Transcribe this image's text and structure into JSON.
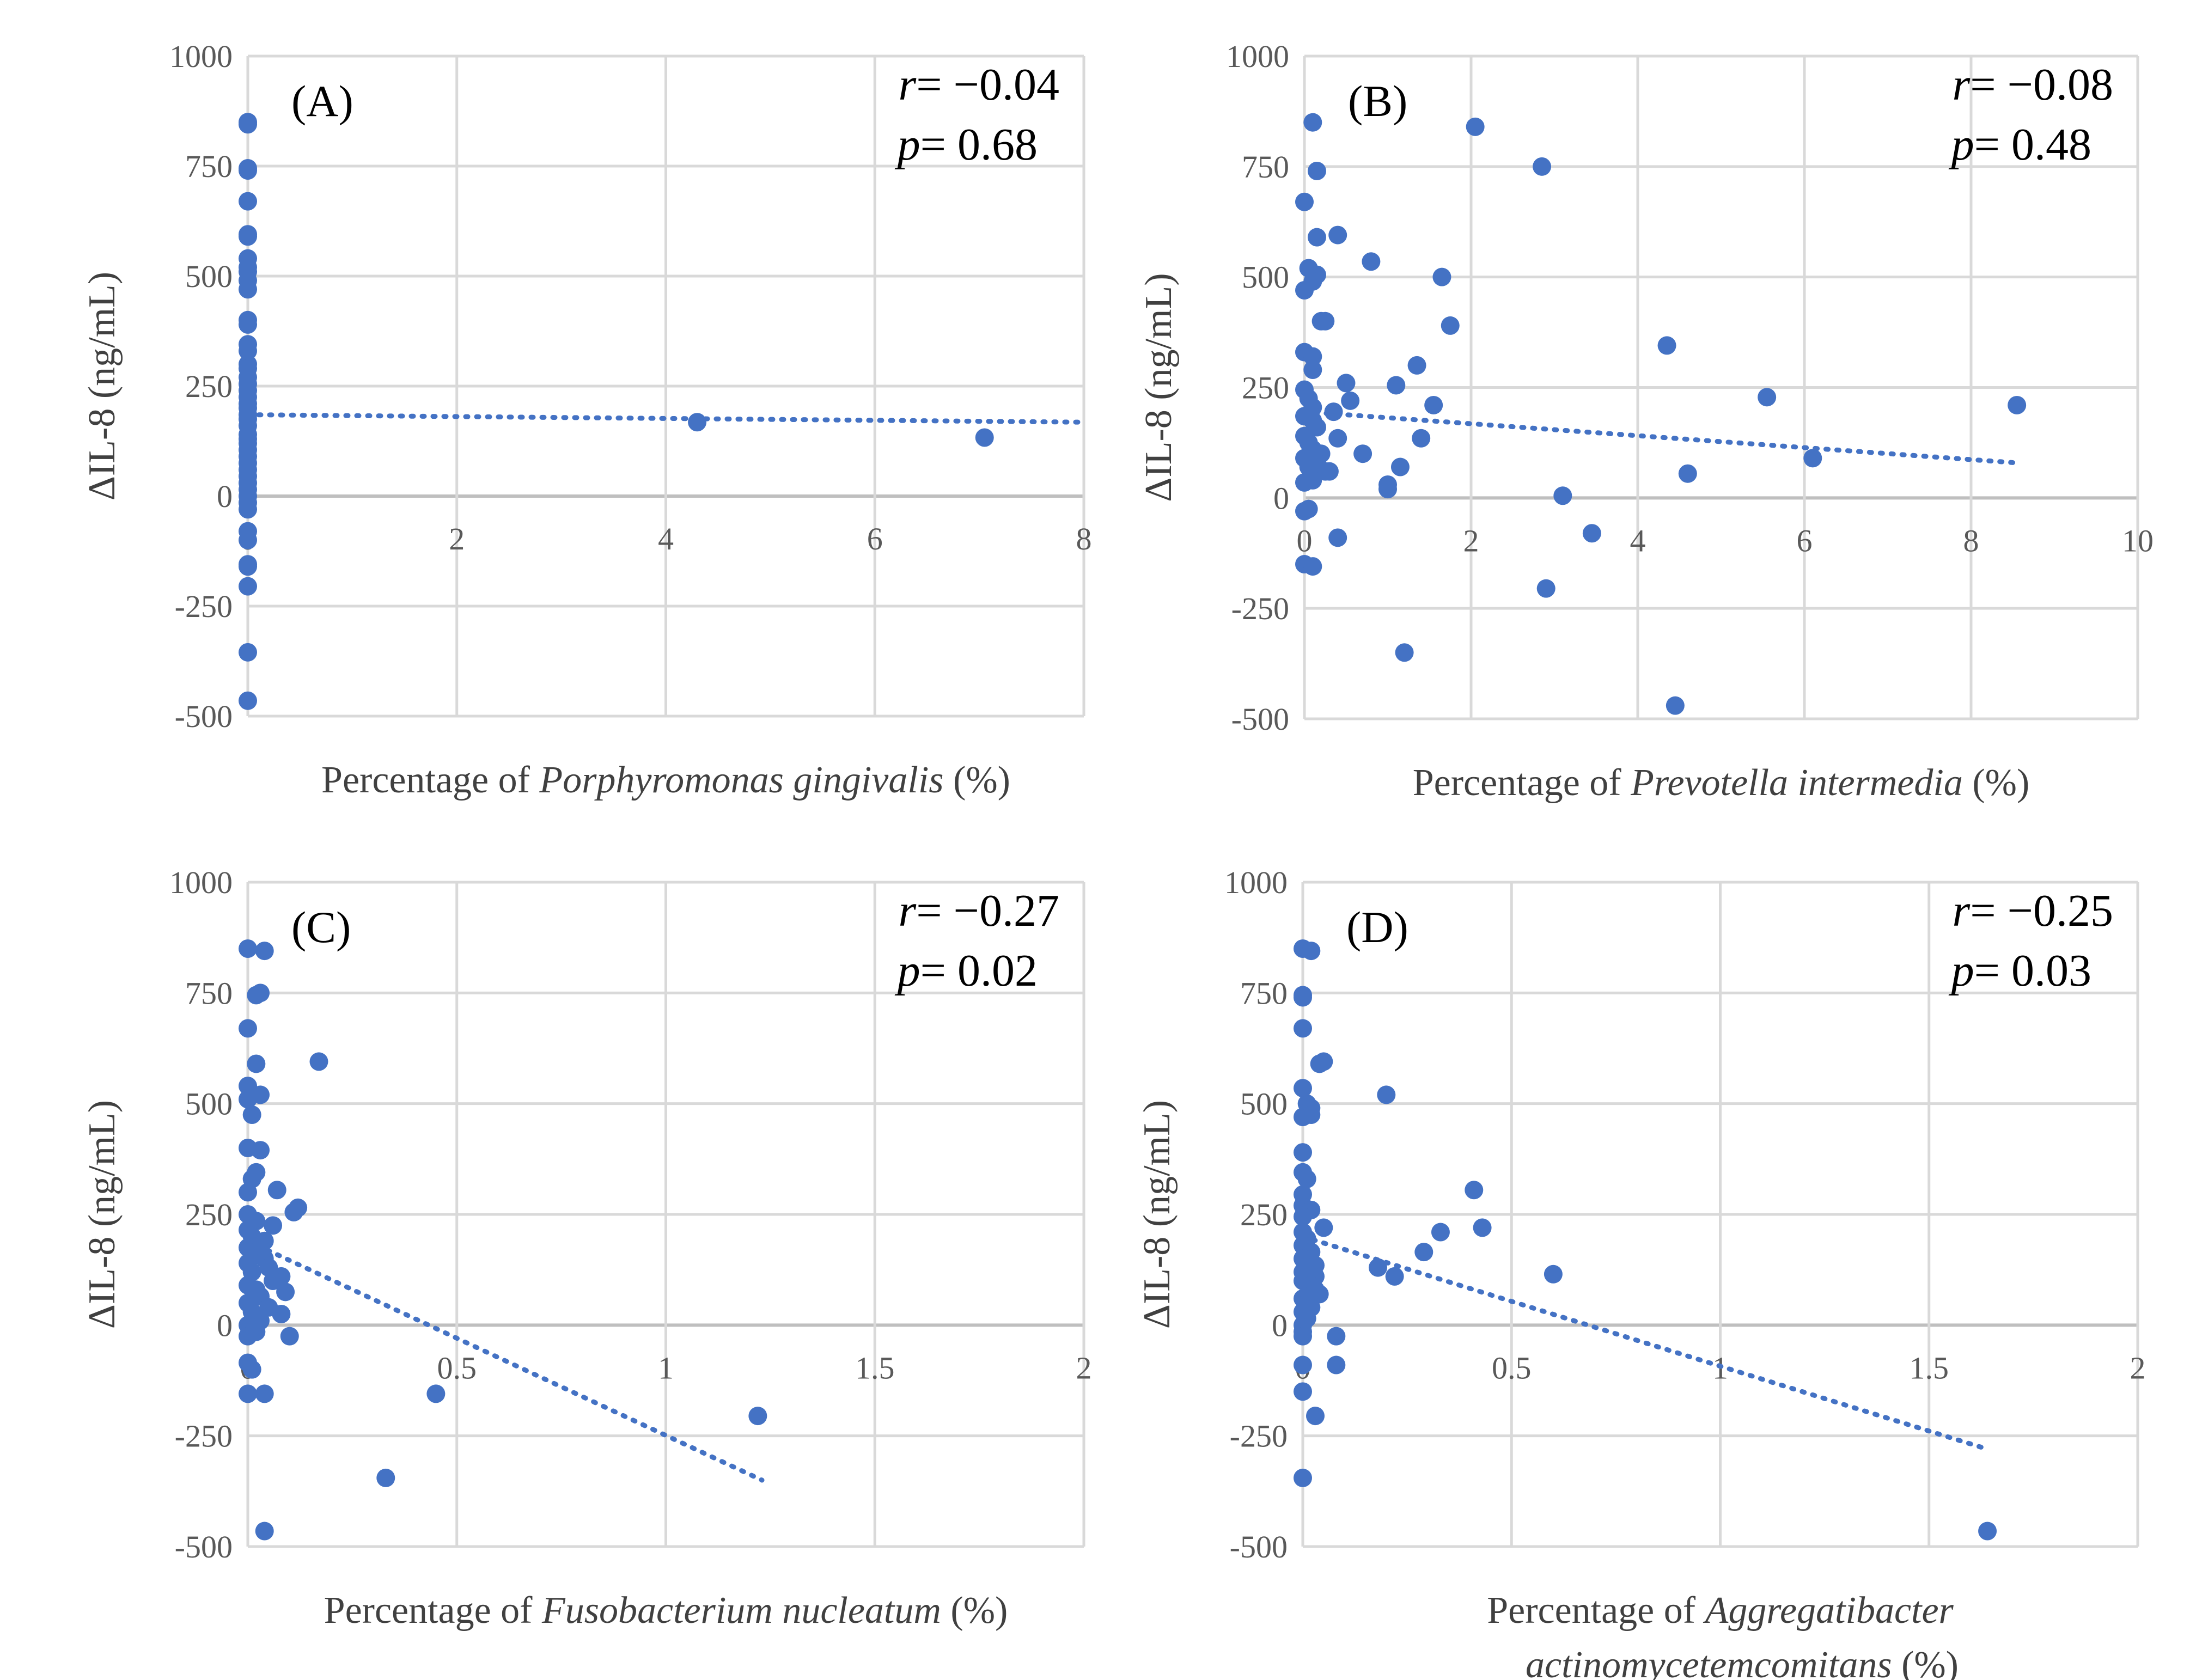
{
  "colors": {
    "points": "#4472C4",
    "trend": "#4472C4",
    "grid": "#D9D9D9"
  },
  "chart_data": [
    {
      "type": "scatter",
      "panel": "(A)",
      "ylabel": "ΔIL-8 (ng/mL)",
      "xlabel_prefix": "Percentage of ",
      "xlabel_species": "Porphyromonas gingivalis",
      "xlabel_suffix": " (%)",
      "xlim": [
        0,
        8
      ],
      "xticks": [
        0,
        2,
        4,
        6,
        8
      ],
      "ylim": [
        -500,
        1000
      ],
      "yticks": [
        -500,
        -250,
        0,
        250,
        500,
        750,
        1000
      ],
      "stats": {
        "r_label": "r",
        "r_value": "= −0.04",
        "p_label": "p",
        "p_value": "= 0.68"
      },
      "trendline": {
        "style": "dotted",
        "x": [
          0,
          8
        ],
        "y": [
          185,
          168
        ]
      },
      "points": [
        [
          0,
          850
        ],
        [
          0,
          845
        ],
        [
          0,
          745
        ],
        [
          0,
          740
        ],
        [
          0,
          670
        ],
        [
          0,
          595
        ],
        [
          0,
          590
        ],
        [
          0,
          540
        ],
        [
          0,
          520
        ],
        [
          0,
          510
        ],
        [
          0,
          490
        ],
        [
          0,
          470
        ],
        [
          0,
          400
        ],
        [
          0,
          390
        ],
        [
          0,
          345
        ],
        [
          0,
          330
        ],
        [
          0,
          300
        ],
        [
          0,
          290
        ],
        [
          0,
          270
        ],
        [
          0,
          255
        ],
        [
          0,
          240
        ],
        [
          0,
          225
        ],
        [
          0,
          210
        ],
        [
          0,
          200
        ],
        [
          0,
          185
        ],
        [
          0,
          175
        ],
        [
          0,
          160
        ],
        [
          0,
          140
        ],
        [
          0,
          130
        ],
        [
          0,
          120
        ],
        [
          0,
          105
        ],
        [
          0,
          90
        ],
        [
          0,
          75
        ],
        [
          0,
          60
        ],
        [
          0,
          45
        ],
        [
          0,
          30
        ],
        [
          0,
          15
        ],
        [
          0,
          0
        ],
        [
          0,
          -15
        ],
        [
          0,
          -30
        ],
        [
          0,
          -80
        ],
        [
          0,
          -100
        ],
        [
          0,
          -155
        ],
        [
          0,
          -160
        ],
        [
          0,
          -205
        ],
        [
          0,
          -355
        ],
        [
          0,
          -465
        ],
        [
          4.3,
          168
        ],
        [
          7.05,
          133
        ]
      ]
    },
    {
      "type": "scatter",
      "panel": "(B)",
      "ylabel": "ΔIL-8 (ng/mL)",
      "xlabel_prefix": "Percentage of ",
      "xlabel_species": "Prevotella intermedia",
      "xlabel_suffix": " (%)",
      "xlim": [
        0,
        10
      ],
      "xticks": [
        0,
        2,
        4,
        6,
        8,
        10
      ],
      "ylim": [
        -500,
        1000
      ],
      "yticks": [
        -500,
        -250,
        0,
        250,
        500,
        750,
        1000
      ],
      "stats": {
        "r_label": "r",
        "r_value": "= −0.08",
        "p_label": "p",
        "p_value": "= 0.48"
      },
      "trendline": {
        "style": "dotted",
        "x": [
          0,
          8.5
        ],
        "y": [
          195,
          80
        ]
      },
      "points": [
        [
          0.1,
          850
        ],
        [
          0.15,
          740
        ],
        [
          0.0,
          670
        ],
        [
          0.15,
          590
        ],
        [
          0.4,
          595
        ],
        [
          0.05,
          520
        ],
        [
          0.15,
          505
        ],
        [
          0.1,
          490
        ],
        [
          0.0,
          470
        ],
        [
          0.2,
          400
        ],
        [
          0.25,
          400
        ],
        [
          0.0,
          330
        ],
        [
          0.1,
          320
        ],
        [
          0.1,
          290
        ],
        [
          0.0,
          245
        ],
        [
          0.05,
          225
        ],
        [
          0.1,
          205
        ],
        [
          0.0,
          185
        ],
        [
          0.1,
          175
        ],
        [
          0.15,
          160
        ],
        [
          0.0,
          140
        ],
        [
          0.05,
          125
        ],
        [
          0.1,
          110
        ],
        [
          0.2,
          100
        ],
        [
          0.0,
          90
        ],
        [
          0.15,
          80
        ],
        [
          0.05,
          70
        ],
        [
          0.25,
          60
        ],
        [
          0.1,
          40
        ],
        [
          0.0,
          35
        ],
        [
          0.3,
          60
        ],
        [
          0.35,
          195
        ],
        [
          0.4,
          135
        ],
        [
          0.5,
          260
        ],
        [
          0.55,
          220
        ],
        [
          0.7,
          100
        ],
        [
          0.8,
          535
        ],
        [
          1.0,
          20
        ],
        [
          1.0,
          30
        ],
        [
          1.1,
          255
        ],
        [
          1.15,
          70
        ],
        [
          1.2,
          -350
        ],
        [
          1.35,
          300
        ],
        [
          1.4,
          135
        ],
        [
          1.55,
          210
        ],
        [
          1.65,
          500
        ],
        [
          1.75,
          390
        ],
        [
          0.05,
          -25
        ],
        [
          0.0,
          -30
        ],
        [
          0.4,
          -90
        ],
        [
          0.0,
          -150
        ],
        [
          0.1,
          -155
        ],
        [
          2.05,
          840
        ],
        [
          2.85,
          750
        ],
        [
          2.9,
          -205
        ],
        [
          3.1,
          5
        ],
        [
          3.45,
          -80
        ],
        [
          4.35,
          345
        ],
        [
          4.45,
          -470
        ],
        [
          4.6,
          55
        ],
        [
          5.55,
          228
        ],
        [
          6.1,
          90
        ],
        [
          8.55,
          210
        ]
      ]
    },
    {
      "type": "scatter",
      "panel": "(C)",
      "ylabel": "ΔIL-8 (ng/mL)",
      "xlabel_prefix": "Percentage of ",
      "xlabel_species": "Fusobacterium nucleatum",
      "xlabel_suffix": " (%)",
      "xlim": [
        0,
        2
      ],
      "xticks": [
        0,
        0.5,
        1,
        1.5,
        2
      ],
      "ylim": [
        -500,
        1000
      ],
      "yticks": [
        -500,
        -250,
        0,
        250,
        500,
        750,
        1000
      ],
      "stats": {
        "r_label": "r",
        "r_value": "= −0.27",
        "p_label": "p",
        "p_value": "= 0.02"
      },
      "trendline": {
        "style": "dotted",
        "x": [
          0,
          1.23
        ],
        "y": [
          190,
          -350
        ]
      },
      "points": [
        [
          0,
          850
        ],
        [
          0.04,
          845
        ],
        [
          0.03,
          750
        ],
        [
          0.02,
          745
        ],
        [
          0.0,
          670
        ],
        [
          0.02,
          590
        ],
        [
          0.17,
          595
        ],
        [
          0.0,
          540
        ],
        [
          0.03,
          520
        ],
        [
          0.0,
          510
        ],
        [
          0.01,
          475
        ],
        [
          0.0,
          400
        ],
        [
          0.03,
          395
        ],
        [
          0.02,
          345
        ],
        [
          0.01,
          330
        ],
        [
          0.0,
          300
        ],
        [
          0.07,
          305
        ],
        [
          0.12,
          265
        ],
        [
          0.11,
          255
        ],
        [
          0.0,
          250
        ],
        [
          0.02,
          235
        ],
        [
          0.06,
          225
        ],
        [
          0.0,
          215
        ],
        [
          0.01,
          200
        ],
        [
          0.04,
          190
        ],
        [
          0.0,
          175
        ],
        [
          0.02,
          165
        ],
        [
          0.04,
          150
        ],
        [
          0.0,
          140
        ],
        [
          0.05,
          130
        ],
        [
          0.01,
          120
        ],
        [
          0.08,
          110
        ],
        [
          0.06,
          100
        ],
        [
          0.0,
          90
        ],
        [
          0.02,
          80
        ],
        [
          0.09,
          75
        ],
        [
          0.03,
          65
        ],
        [
          0.0,
          50
        ],
        [
          0.05,
          40
        ],
        [
          0.01,
          30
        ],
        [
          0.08,
          25
        ],
        [
          0.03,
          10
        ],
        [
          0.0,
          0
        ],
        [
          0.02,
          -15
        ],
        [
          0.0,
          -25
        ],
        [
          0.1,
          -25
        ],
        [
          0.0,
          -85
        ],
        [
          0.01,
          -100
        ],
        [
          0.0,
          -155
        ],
        [
          0.04,
          -155
        ],
        [
          0.45,
          -155
        ],
        [
          0.33,
          -345
        ],
        [
          0.04,
          -465
        ],
        [
          1.22,
          -205
        ]
      ]
    },
    {
      "type": "scatter",
      "panel": "(D)",
      "ylabel": "ΔIL-8 (ng/mL)",
      "xlabel_prefix": "Percentage of ",
      "xlabel_species": "Aggregatibacter",
      "xlabel_line2": "actinomycetemcomitans",
      "xlabel_suffix": " (%)",
      "xlim": [
        0,
        2
      ],
      "xticks": [
        0,
        0.5,
        1,
        1.5,
        2
      ],
      "ylim": [
        -500,
        1000
      ],
      "yticks": [
        -500,
        -250,
        0,
        250,
        500,
        750,
        1000
      ],
      "stats": {
        "r_label": "r",
        "r_value": "= −0.25",
        "p_label": "p",
        "p_value": "= 0.03"
      },
      "trendline": {
        "style": "dotted",
        "x": [
          0,
          1.64
        ],
        "y": [
          200,
          -280
        ]
      },
      "points": [
        [
          0.0,
          850
        ],
        [
          0.02,
          845
        ],
        [
          0.0,
          745
        ],
        [
          0.0,
          740
        ],
        [
          0.0,
          670
        ],
        [
          0.05,
          595
        ],
        [
          0.04,
          590
        ],
        [
          0.0,
          535
        ],
        [
          0.2,
          520
        ],
        [
          0.01,
          500
        ],
        [
          0.02,
          490
        ],
        [
          0.0,
          470
        ],
        [
          0.02,
          475
        ],
        [
          0.0,
          390
        ],
        [
          0.0,
          345
        ],
        [
          0.01,
          330
        ],
        [
          0.0,
          295
        ],
        [
          0.0,
          270
        ],
        [
          0.02,
          260
        ],
        [
          0.0,
          245
        ],
        [
          0.05,
          220
        ],
        [
          0.0,
          210
        ],
        [
          0.01,
          195
        ],
        [
          0.0,
          180
        ],
        [
          0.02,
          165
        ],
        [
          0.0,
          150
        ],
        [
          0.03,
          135
        ],
        [
          0.0,
          120
        ],
        [
          0.03,
          110
        ],
        [
          0.0,
          100
        ],
        [
          0.02,
          90
        ],
        [
          0.03,
          80
        ],
        [
          0.04,
          70
        ],
        [
          0.0,
          60
        ],
        [
          0.01,
          50
        ],
        [
          0.02,
          40
        ],
        [
          0.0,
          30
        ],
        [
          0.01,
          15
        ],
        [
          0.0,
          0
        ],
        [
          0.0,
          -15
        ],
        [
          0.0,
          -25
        ],
        [
          0.08,
          -25
        ],
        [
          0.0,
          -90
        ],
        [
          0.08,
          -90
        ],
        [
          0.0,
          -150
        ],
        [
          0.03,
          -205
        ],
        [
          0.0,
          -345
        ],
        [
          0.18,
          130
        ],
        [
          0.22,
          110
        ],
        [
          0.29,
          165
        ],
        [
          0.33,
          210
        ],
        [
          0.41,
          305
        ],
        [
          0.43,
          220
        ],
        [
          0.6,
          115
        ],
        [
          1.64,
          -465
        ]
      ]
    }
  ]
}
